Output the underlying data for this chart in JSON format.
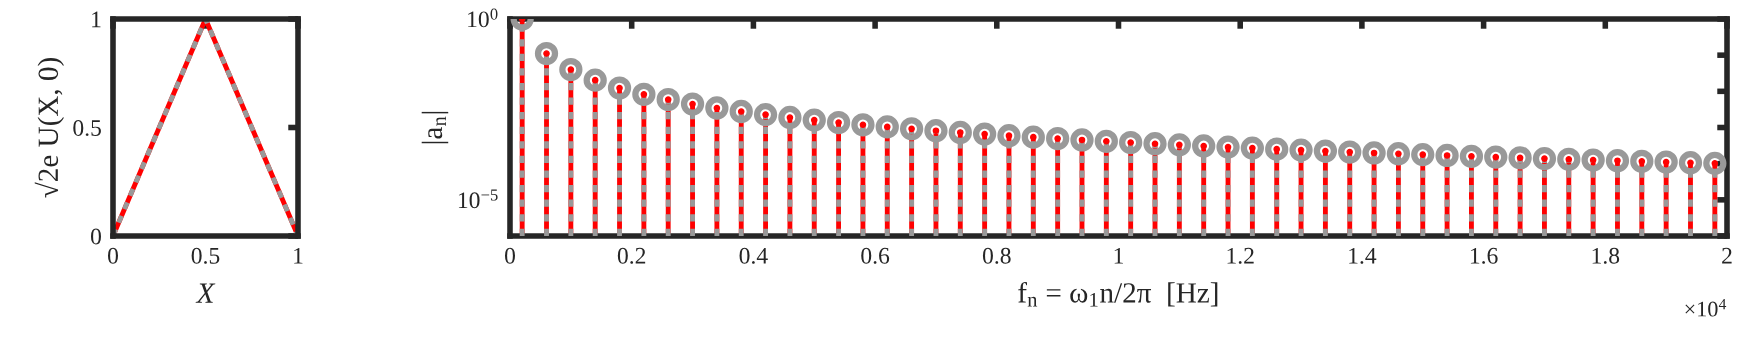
{
  "chart_data": [
    {
      "type": "line",
      "xlabel": "X",
      "ylabel": "√2e U(X, 0)",
      "xlim": [
        0,
        1
      ],
      "ylim": [
        0,
        1
      ],
      "xticks": [
        0,
        0.5,
        1
      ],
      "yticks": [
        0,
        0.5,
        1
      ],
      "grid": false,
      "legend": false,
      "series": [
        {
          "color": "#ff0000",
          "line_style": "solid",
          "x": [
            0,
            0.5,
            1
          ],
          "values": [
            0,
            1,
            0
          ]
        },
        {
          "color": "#999999",
          "line_style": "dashed",
          "x": [
            0,
            0.5,
            1
          ],
          "values": [
            0,
            1,
            0
          ]
        }
      ]
    },
    {
      "type": "lollipop",
      "xlabel": "f$_{n}$ = ω$_{1}$n/2π  [Hz]",
      "ylabel": "|a$_{n}$|",
      "log": "y",
      "grid": false,
      "legend": false,
      "marker": "circle",
      "annotations": [
        "×10$^{4}$"
      ],
      "xlim": [
        0,
        2
      ],
      "ylim": [
        1e-06,
        1
      ],
      "xticks": [
        0,
        0.2,
        0.4,
        0.6,
        0.8,
        1,
        1.2,
        1.4,
        1.6,
        1.8,
        2
      ],
      "yticks": [
        {
          "value": 1e-06,
          "label": null
        },
        {
          "value": 1e-05,
          "label": "10$^{−5}$"
        },
        {
          "value": 0.0001,
          "label": null
        },
        {
          "value": 0.001,
          "label": null
        },
        {
          "value": 0.01,
          "label": null
        },
        {
          "value": 0.1,
          "label": null
        },
        {
          "value": 1,
          "label": "10$^{0}$"
        }
      ],
      "x": [
        0.02,
        0.06,
        0.1,
        0.14,
        0.18,
        0.22,
        0.26,
        0.3,
        0.34,
        0.38,
        0.42,
        0.46,
        0.5,
        0.54,
        0.58,
        0.62,
        0.66,
        0.7,
        0.74,
        0.78,
        0.82,
        0.86,
        0.9,
        0.94,
        0.98,
        1.02,
        1.06,
        1.1,
        1.14,
        1.18,
        1.22,
        1.26,
        1.3,
        1.34,
        1.38,
        1.42,
        1.46,
        1.5,
        1.54,
        1.58,
        1.62,
        1.66,
        1.7,
        1.74,
        1.78,
        1.82,
        1.86,
        1.9,
        1.94,
        1.98
      ],
      "series": [
        {
          "color": "#ff0000",
          "line_style": "solid",
          "values": [
            1,
            0.111,
            0.04,
            0.0204,
            0.0123,
            0.00826,
            0.00592,
            0.00444,
            0.00346,
            0.00277,
            0.00227,
            0.00189,
            0.0016,
            0.00137,
            0.00119,
            0.00104,
            0.000918,
            0.000816,
            0.00073,
            0.000657,
            0.000595,
            0.000541,
            0.000494,
            0.000453,
            0.000416,
            0.000384,
            0.000356,
            0.000331,
            0.000308,
            0.000287,
            0.000269,
            0.000252,
            0.000237,
            0.000223,
            0.00021,
            0.000198,
            0.000188,
            0.000178,
            0.000169,
            0.00016,
            0.000152,
            0.000145,
            0.000138,
            0.000132,
            0.000126,
            0.000121,
            0.000116,
            0.000111,
            0.000106,
            0.000102
          ]
        },
        {
          "color": "#999999",
          "line_style": "dashed",
          "values": [
            1,
            0.111,
            0.04,
            0.0204,
            0.0123,
            0.00826,
            0.00592,
            0.00444,
            0.00346,
            0.00277,
            0.00227,
            0.00189,
            0.0016,
            0.00137,
            0.00119,
            0.00104,
            0.000918,
            0.000816,
            0.00073,
            0.000657,
            0.000595,
            0.000541,
            0.000494,
            0.000453,
            0.000416,
            0.000384,
            0.000356,
            0.000331,
            0.000308,
            0.000287,
            0.000269,
            0.000252,
            0.000237,
            0.000223,
            0.00021,
            0.000198,
            0.000188,
            0.000178,
            0.000169,
            0.00016,
            0.000152,
            0.000145,
            0.000138,
            0.000132,
            0.000126,
            0.000121,
            0.000116,
            0.000111,
            0.000106,
            0.000102
          ]
        }
      ]
    }
  ]
}
